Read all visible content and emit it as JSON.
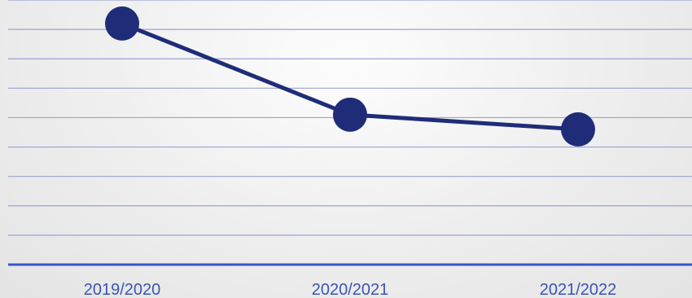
{
  "chart_data": {
    "type": "line",
    "categories": [
      "2019/2020",
      "2020/2021",
      "2021/2022"
    ],
    "series": [
      {
        "values": [
          8.2,
          5.1,
          4.6
        ]
      }
    ],
    "ylim": [
      0,
      9
    ],
    "grid": true,
    "title": "",
    "xlabel": "",
    "ylabel": ""
  },
  "colors": {
    "line": "#1f2d78",
    "marker": "#1f2d78",
    "grid": "#9aa3cf",
    "axis": "#3a55c8",
    "tick_label": "#3a55b4"
  }
}
